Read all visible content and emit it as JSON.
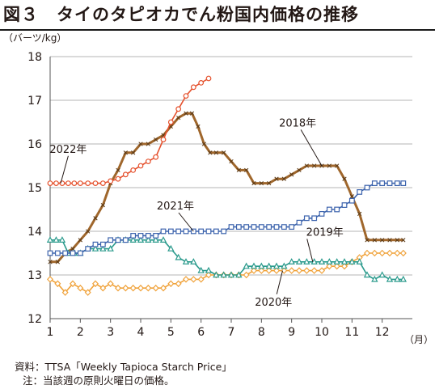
{
  "title": "図３　タイのタピオカでん粉国内価格の推移",
  "footnote_source": "資料：TTSA「Weekly Tapioca Starch Price」",
  "footnote_note": "注：当該週の原則火曜日の価格。",
  "chart_data": {
    "type": "line",
    "ylabel": "（バーツ/kg）",
    "xlabel": "（月）",
    "xlim": [
      1,
      13
    ],
    "ylim": [
      12,
      18
    ],
    "yticks": [
      12,
      13,
      14,
      15,
      16,
      17,
      18
    ],
    "xticks": [
      "1",
      "2",
      "3",
      "4",
      "5",
      "6",
      "7",
      "8",
      "9",
      "10",
      "11",
      "12"
    ],
    "grid": "horizontal",
    "series": [
      {
        "name": "2018年",
        "color": "#a0672c",
        "marker": "x",
        "points": [
          [
            1,
            13.3
          ],
          [
            1.25,
            13.3
          ],
          [
            1.5,
            13.5
          ],
          [
            1.75,
            13.6
          ],
          [
            2,
            13.8
          ],
          [
            2.25,
            14
          ],
          [
            2.5,
            14.3
          ],
          [
            2.75,
            14.6
          ],
          [
            3,
            15.1
          ],
          [
            3.25,
            15.4
          ],
          [
            3.5,
            15.8
          ],
          [
            3.75,
            15.8
          ],
          [
            4,
            16
          ],
          [
            4.25,
            16
          ],
          [
            4.5,
            16.1
          ],
          [
            4.75,
            16.2
          ],
          [
            5,
            16.4
          ],
          [
            5.25,
            16.6
          ],
          [
            5.5,
            16.7
          ],
          [
            5.7,
            16.7
          ],
          [
            5.9,
            16.4
          ],
          [
            6.1,
            16
          ],
          [
            6.3,
            15.8
          ],
          [
            6.5,
            15.8
          ],
          [
            6.75,
            15.8
          ],
          [
            7,
            15.6
          ],
          [
            7.25,
            15.4
          ],
          [
            7.5,
            15.4
          ],
          [
            7.75,
            15.1
          ],
          [
            8,
            15.1
          ],
          [
            8.25,
            15.1
          ],
          [
            8.5,
            15.2
          ],
          [
            8.75,
            15.2
          ],
          [
            9,
            15.3
          ],
          [
            9.25,
            15.4
          ],
          [
            9.5,
            15.5
          ],
          [
            9.75,
            15.5
          ],
          [
            10,
            15.5
          ],
          [
            10.25,
            15.5
          ],
          [
            10.5,
            15.5
          ],
          [
            10.75,
            15.2
          ],
          [
            11,
            14.8
          ],
          [
            11.25,
            14.4
          ],
          [
            11.5,
            13.8
          ],
          [
            11.75,
            13.8
          ],
          [
            12,
            13.8
          ],
          [
            12.25,
            13.8
          ],
          [
            12.5,
            13.8
          ],
          [
            12.7,
            13.8
          ]
        ]
      },
      {
        "name": "2019年",
        "color": "#f0a23a",
        "marker": "diamond",
        "points": [
          [
            1,
            12.9
          ],
          [
            1.25,
            12.8
          ],
          [
            1.5,
            12.6
          ],
          [
            1.75,
            12.8
          ],
          [
            2,
            12.7
          ],
          [
            2.25,
            12.6
          ],
          [
            2.5,
            12.8
          ],
          [
            2.75,
            12.7
          ],
          [
            3,
            12.8
          ],
          [
            3.25,
            12.7
          ],
          [
            3.5,
            12.7
          ],
          [
            3.75,
            12.7
          ],
          [
            4,
            12.7
          ],
          [
            4.25,
            12.7
          ],
          [
            4.5,
            12.7
          ],
          [
            4.75,
            12.7
          ],
          [
            5,
            12.8
          ],
          [
            5.25,
            12.8
          ],
          [
            5.5,
            12.9
          ],
          [
            5.75,
            12.9
          ],
          [
            6,
            12.9
          ],
          [
            6.25,
            13
          ],
          [
            6.5,
            13
          ],
          [
            6.75,
            13
          ],
          [
            7,
            13
          ],
          [
            7.25,
            13
          ],
          [
            7.5,
            13
          ],
          [
            7.75,
            13.1
          ],
          [
            8,
            13.1
          ],
          [
            8.25,
            13.1
          ],
          [
            8.5,
            13.1
          ],
          [
            8.75,
            13.1
          ],
          [
            9,
            13.1
          ],
          [
            9.25,
            13.1
          ],
          [
            9.5,
            13.1
          ],
          [
            9.75,
            13.1
          ],
          [
            10,
            13.1
          ],
          [
            10.25,
            13.2
          ],
          [
            10.5,
            13.2
          ],
          [
            10.75,
            13.2
          ],
          [
            11,
            13.3
          ],
          [
            11.25,
            13.4
          ],
          [
            11.5,
            13.5
          ],
          [
            11.75,
            13.5
          ],
          [
            12,
            13.5
          ],
          [
            12.25,
            13.5
          ],
          [
            12.5,
            13.5
          ],
          [
            12.7,
            13.5
          ]
        ]
      },
      {
        "name": "2020年",
        "color": "#2a9a8c",
        "marker": "triangle",
        "points": [
          [
            1,
            13.8
          ],
          [
            1.2,
            13.8
          ],
          [
            1.4,
            13.8
          ],
          [
            1.6,
            13.5
          ],
          [
            1.8,
            13.5
          ],
          [
            2,
            13.5
          ],
          [
            2.25,
            13.6
          ],
          [
            2.5,
            13.6
          ],
          [
            2.75,
            13.6
          ],
          [
            3,
            13.6
          ],
          [
            3.25,
            13.8
          ],
          [
            3.5,
            13.8
          ],
          [
            3.75,
            13.8
          ],
          [
            4,
            13.8
          ],
          [
            4.25,
            13.8
          ],
          [
            4.5,
            13.8
          ],
          [
            4.75,
            13.8
          ],
          [
            5,
            13.6
          ],
          [
            5.25,
            13.4
          ],
          [
            5.5,
            13.3
          ],
          [
            5.75,
            13.3
          ],
          [
            6,
            13.1
          ],
          [
            6.25,
            13.1
          ],
          [
            6.5,
            13
          ],
          [
            6.75,
            13
          ],
          [
            7,
            13
          ],
          [
            7.25,
            13
          ],
          [
            7.5,
            13.2
          ],
          [
            7.75,
            13.2
          ],
          [
            8,
            13.2
          ],
          [
            8.25,
            13.2
          ],
          [
            8.5,
            13.2
          ],
          [
            8.75,
            13.2
          ],
          [
            9,
            13.3
          ],
          [
            9.25,
            13.3
          ],
          [
            9.5,
            13.3
          ],
          [
            9.75,
            13.3
          ],
          [
            10,
            13.3
          ],
          [
            10.25,
            13.3
          ],
          [
            10.5,
            13.3
          ],
          [
            10.75,
            13.3
          ],
          [
            11,
            13.3
          ],
          [
            11.25,
            13.3
          ],
          [
            11.5,
            13
          ],
          [
            11.75,
            12.9
          ],
          [
            12,
            13
          ],
          [
            12.25,
            12.9
          ],
          [
            12.5,
            12.9
          ],
          [
            12.7,
            12.9
          ]
        ]
      },
      {
        "name": "2021年",
        "color": "#3d64ad",
        "marker": "square",
        "points": [
          [
            1,
            13.5
          ],
          [
            1.25,
            13.5
          ],
          [
            1.5,
            13.5
          ],
          [
            1.75,
            13.5
          ],
          [
            2,
            13.5
          ],
          [
            2.25,
            13.6
          ],
          [
            2.5,
            13.7
          ],
          [
            2.75,
            13.7
          ],
          [
            3,
            13.8
          ],
          [
            3.25,
            13.8
          ],
          [
            3.5,
            13.8
          ],
          [
            3.75,
            13.9
          ],
          [
            4,
            13.9
          ],
          [
            4.25,
            13.9
          ],
          [
            4.5,
            13.9
          ],
          [
            4.75,
            14
          ],
          [
            5,
            14
          ],
          [
            5.25,
            14
          ],
          [
            5.5,
            14
          ],
          [
            5.75,
            14
          ],
          [
            6,
            14
          ],
          [
            6.25,
            14
          ],
          [
            6.5,
            14
          ],
          [
            6.75,
            14
          ],
          [
            7,
            14.1
          ],
          [
            7.25,
            14.1
          ],
          [
            7.5,
            14.1
          ],
          [
            7.75,
            14.1
          ],
          [
            8,
            14.1
          ],
          [
            8.25,
            14.1
          ],
          [
            8.5,
            14.1
          ],
          [
            8.75,
            14.1
          ],
          [
            9,
            14.1
          ],
          [
            9.25,
            14.2
          ],
          [
            9.5,
            14.3
          ],
          [
            9.75,
            14.3
          ],
          [
            10,
            14.4
          ],
          [
            10.25,
            14.5
          ],
          [
            10.5,
            14.5
          ],
          [
            10.75,
            14.6
          ],
          [
            11,
            14.7
          ],
          [
            11.25,
            14.9
          ],
          [
            11.5,
            15
          ],
          [
            11.75,
            15.1
          ],
          [
            12,
            15.1
          ],
          [
            12.25,
            15.1
          ],
          [
            12.5,
            15.1
          ],
          [
            12.7,
            15.1
          ]
        ]
      },
      {
        "name": "2022年",
        "color": "#e5512d",
        "marker": "circle",
        "points": [
          [
            1,
            15.1
          ],
          [
            1.2,
            15.1
          ],
          [
            1.4,
            15.1
          ],
          [
            1.6,
            15.1
          ],
          [
            1.8,
            15.1
          ],
          [
            2,
            15.1
          ],
          [
            2.25,
            15.1
          ],
          [
            2.5,
            15.1
          ],
          [
            2.75,
            15.1
          ],
          [
            3,
            15.15
          ],
          [
            3.25,
            15.2
          ],
          [
            3.5,
            15.3
          ],
          [
            3.75,
            15.4
          ],
          [
            4,
            15.5
          ],
          [
            4.25,
            15.6
          ],
          [
            4.5,
            15.7
          ],
          [
            4.75,
            16.1
          ],
          [
            5,
            16.5
          ],
          [
            5.25,
            16.8
          ],
          [
            5.5,
            17.1
          ],
          [
            5.75,
            17.3
          ],
          [
            6,
            17.4
          ],
          [
            6.25,
            17.5
          ]
        ]
      }
    ],
    "annotations": [
      {
        "text": "2022年",
        "x": 1.6,
        "y": 15.8,
        "target_x": 1.35,
        "target_y": 15.1
      },
      {
        "text": "2018年",
        "x": 9.2,
        "y": 16.4,
        "target_x": 10.0,
        "target_y": 15.5
      },
      {
        "text": "2021年",
        "x": 5.15,
        "y": 14.5,
        "target_x": 5.75,
        "target_y": 14.0
      },
      {
        "text": "2019年",
        "x": 10.1,
        "y": 13.9,
        "target_x": 9.7,
        "target_y": 13.3
      },
      {
        "text": "2020年",
        "x": 8.4,
        "y": 12.3,
        "target_x": 8.7,
        "target_y": 13.1
      }
    ]
  }
}
